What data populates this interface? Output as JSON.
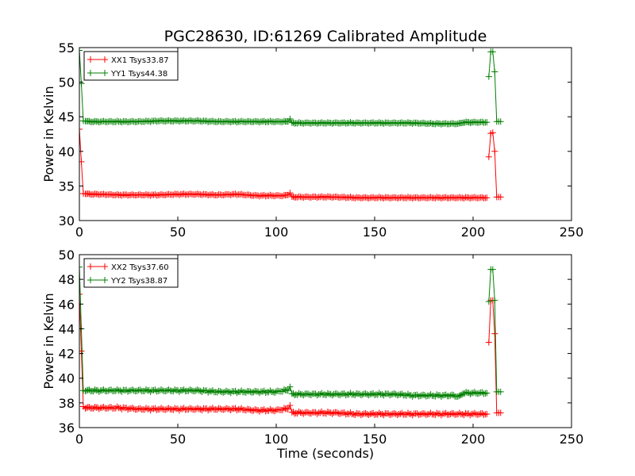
{
  "title": "PGC28630, ID:61269 Calibrated Amplitude",
  "colors": {
    "red": "#ff0000",
    "green": "#008000"
  },
  "chart_data": [
    {
      "type": "line",
      "ylabel": "Power in Kelvin",
      "xlabel": "",
      "xlim": [
        0,
        250
      ],
      "ylim": [
        30,
        55
      ],
      "xticks": [
        0,
        50,
        100,
        150,
        200,
        250
      ],
      "yticks": [
        30,
        35,
        40,
        45,
        50,
        55
      ],
      "legend_position": "top-left",
      "grid": false,
      "series": [
        {
          "name": "XX1 Tsys33.87",
          "color": "#ff0000",
          "marker": "+",
          "segments": [
            [
              [
                0,
                43.2
              ],
              [
                1,
                38.5
              ],
              [
                2,
                33.9
              ],
              [
                3,
                33.9
              ],
              [
                5,
                33.8
              ],
              [
                10,
                33.8
              ],
              [
                20,
                33.7
              ],
              [
                30,
                33.7
              ],
              [
                40,
                33.7
              ],
              [
                50,
                33.8
              ],
              [
                60,
                33.8
              ],
              [
                70,
                33.7
              ],
              [
                80,
                33.8
              ],
              [
                90,
                33.6
              ],
              [
                100,
                33.6
              ],
              [
                104,
                33.6
              ],
              [
                106,
                33.7
              ],
              [
                107,
                34.0
              ],
              [
                108,
                33.4
              ],
              [
                110,
                33.4
              ],
              [
                120,
                33.4
              ],
              [
                130,
                33.4
              ],
              [
                140,
                33.3
              ],
              [
                150,
                33.3
              ],
              [
                160,
                33.3
              ],
              [
                170,
                33.3
              ],
              [
                180,
                33.3
              ],
              [
                190,
                33.3
              ],
              [
                200,
                33.3
              ],
              [
                207,
                33.3
              ]
            ],
            [
              [
                208,
                39.2
              ],
              [
                209,
                42.6
              ],
              [
                210,
                42.7
              ],
              [
                211,
                40.0
              ],
              [
                212,
                33.4
              ],
              [
                213,
                33.4
              ],
              [
                214,
                33.4
              ]
            ]
          ]
        },
        {
          "name": "YY1 Tsys44.38",
          "color": "#008000",
          "marker": "+",
          "segments": [
            [
              [
                0,
                54.6
              ],
              [
                1,
                49.8
              ],
              [
                2,
                44.4
              ],
              [
                3,
                44.4
              ],
              [
                5,
                44.3
              ],
              [
                10,
                44.3
              ],
              [
                20,
                44.3
              ],
              [
                30,
                44.3
              ],
              [
                40,
                44.4
              ],
              [
                50,
                44.4
              ],
              [
                60,
                44.4
              ],
              [
                70,
                44.3
              ],
              [
                80,
                44.3
              ],
              [
                90,
                44.3
              ],
              [
                100,
                44.3
              ],
              [
                104,
                44.3
              ],
              [
                106,
                44.3
              ],
              [
                107,
                44.7
              ],
              [
                108,
                44.1
              ],
              [
                110,
                44.1
              ],
              [
                120,
                44.1
              ],
              [
                130,
                44.1
              ],
              [
                140,
                44.1
              ],
              [
                150,
                44.1
              ],
              [
                160,
                44.1
              ],
              [
                170,
                44.1
              ],
              [
                180,
                44.0
              ],
              [
                190,
                44.0
              ],
              [
                193,
                44.0
              ],
              [
                195,
                44.2
              ],
              [
                200,
                44.2
              ],
              [
                207,
                44.2
              ]
            ],
            [
              [
                208,
                50.8
              ],
              [
                209,
                54.4
              ],
              [
                210,
                54.4
              ],
              [
                211,
                51.5
              ],
              [
                212,
                44.3
              ],
              [
                213,
                44.3
              ],
              [
                214,
                44.3
              ]
            ]
          ]
        }
      ]
    },
    {
      "type": "line",
      "ylabel": "Power in Kelvin",
      "xlabel": "Time (seconds)",
      "xlim": [
        0,
        250
      ],
      "ylim": [
        36,
        50
      ],
      "xticks": [
        0,
        50,
        100,
        150,
        200,
        250
      ],
      "yticks": [
        36,
        38,
        40,
        42,
        44,
        46,
        48,
        50
      ],
      "legend_position": "top-left",
      "grid": false,
      "series": [
        {
          "name": "XX2 Tsys37.60",
          "color": "#ff0000",
          "marker": "+",
          "segments": [
            [
              [
                0,
                46.8
              ],
              [
                1,
                42.2
              ],
              [
                2,
                37.7
              ],
              [
                3,
                37.6
              ],
              [
                5,
                37.6
              ],
              [
                10,
                37.6
              ],
              [
                20,
                37.6
              ],
              [
                30,
                37.5
              ],
              [
                40,
                37.5
              ],
              [
                50,
                37.5
              ],
              [
                60,
                37.5
              ],
              [
                70,
                37.5
              ],
              [
                80,
                37.5
              ],
              [
                90,
                37.4
              ],
              [
                100,
                37.4
              ],
              [
                104,
                37.5
              ],
              [
                106,
                37.5
              ],
              [
                107,
                37.8
              ],
              [
                108,
                37.2
              ],
              [
                110,
                37.2
              ],
              [
                120,
                37.2
              ],
              [
                130,
                37.2
              ],
              [
                140,
                37.1
              ],
              [
                150,
                37.1
              ],
              [
                160,
                37.1
              ],
              [
                170,
                37.1
              ],
              [
                180,
                37.1
              ],
              [
                190,
                37.1
              ],
              [
                200,
                37.1
              ],
              [
                207,
                37.1
              ]
            ],
            [
              [
                208,
                42.9
              ],
              [
                209,
                46.3
              ],
              [
                210,
                46.3
              ],
              [
                211,
                43.6
              ],
              [
                212,
                37.2
              ],
              [
                213,
                37.2
              ],
              [
                214,
                37.2
              ]
            ]
          ]
        },
        {
          "name": "YY2 Tsys38.87",
          "color": "#008000",
          "marker": "+",
          "segments": [
            [
              [
                0,
                49.0
              ],
              [
                1,
                44.0
              ],
              [
                2,
                39.0
              ],
              [
                3,
                39.0
              ],
              [
                5,
                39.0
              ],
              [
                10,
                39.0
              ],
              [
                20,
                39.0
              ],
              [
                30,
                39.0
              ],
              [
                40,
                39.0
              ],
              [
                50,
                39.0
              ],
              [
                60,
                39.0
              ],
              [
                70,
                38.9
              ],
              [
                80,
                38.9
              ],
              [
                90,
                38.9
              ],
              [
                100,
                38.9
              ],
              [
                104,
                39.0
              ],
              [
                106,
                39.0
              ],
              [
                107,
                39.3
              ],
              [
                108,
                38.7
              ],
              [
                110,
                38.7
              ],
              [
                120,
                38.7
              ],
              [
                130,
                38.7
              ],
              [
                140,
                38.7
              ],
              [
                150,
                38.7
              ],
              [
                160,
                38.7
              ],
              [
                170,
                38.6
              ],
              [
                180,
                38.6
              ],
              [
                190,
                38.6
              ],
              [
                193,
                38.5
              ],
              [
                195,
                38.8
              ],
              [
                200,
                38.8
              ],
              [
                207,
                38.8
              ]
            ],
            [
              [
                208,
                46.2
              ],
              [
                209,
                48.8
              ],
              [
                210,
                48.8
              ],
              [
                211,
                46.3
              ],
              [
                212,
                38.9
              ],
              [
                213,
                38.9
              ],
              [
                214,
                38.9
              ]
            ]
          ]
        }
      ]
    }
  ]
}
